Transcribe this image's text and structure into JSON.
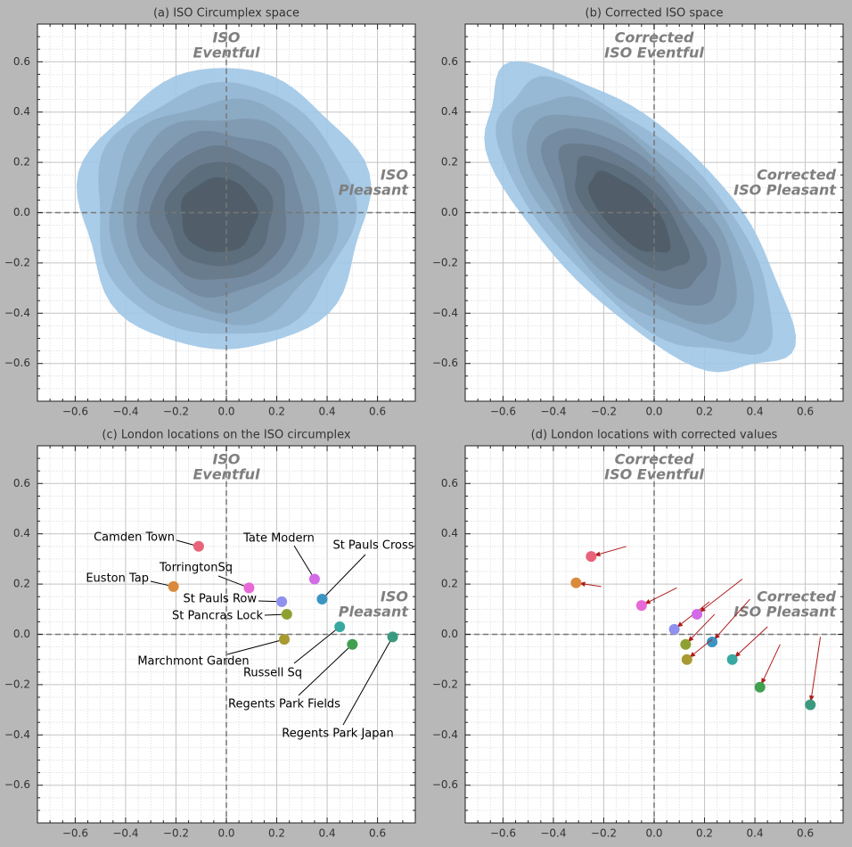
{
  "chart_data": [
    {
      "type": "kde",
      "title": "(a) ISO Circumplex space",
      "xlim": [
        -0.75,
        0.75
      ],
      "ylim": [
        -0.75,
        0.75
      ],
      "xticks": [
        {
          "value": -0.6,
          "label": "−0.6"
        },
        {
          "value": -0.4,
          "label": "−0.4"
        },
        {
          "value": -0.2,
          "label": "−0.2"
        },
        {
          "value": 0,
          "label": "0.0"
        },
        {
          "value": 0.2,
          "label": "0.2"
        },
        {
          "value": 0.4,
          "label": "0.4"
        },
        {
          "value": 0.6,
          "label": "0.6"
        }
      ],
      "yticks": [
        {
          "value": -0.6,
          "label": "−0.6"
        },
        {
          "value": -0.4,
          "label": "−0.4"
        },
        {
          "value": -0.2,
          "label": "−0.2"
        },
        {
          "value": 0,
          "label": "0.0"
        },
        {
          "value": 0.2,
          "label": "0.2"
        },
        {
          "value": 0.4,
          "label": "0.4"
        },
        {
          "value": 0.6,
          "label": "0.6"
        }
      ],
      "grid": true,
      "minor_grid": true,
      "hline": 0,
      "vline": 0,
      "annotations": [
        [
          "ISO",
          "Eventful"
        ],
        [
          "ISO",
          "Pleasant"
        ]
      ]
    },
    {
      "type": "kde",
      "title": "(b) Corrected ISO space",
      "xlim": [
        -0.75,
        0.75
      ],
      "ylim": [
        -0.75,
        0.75
      ],
      "xticks": [
        {
          "value": -0.6,
          "label": "−0.6"
        },
        {
          "value": -0.4,
          "label": "−0.4"
        },
        {
          "value": -0.2,
          "label": "−0.2"
        },
        {
          "value": 0,
          "label": "0.0"
        },
        {
          "value": 0.2,
          "label": "0.2"
        },
        {
          "value": 0.4,
          "label": "0.4"
        },
        {
          "value": 0.6,
          "label": "0.6"
        }
      ],
      "yticks": [
        {
          "value": -0.6,
          "label": "−0.6"
        },
        {
          "value": -0.4,
          "label": "−0.4"
        },
        {
          "value": -0.2,
          "label": "−0.2"
        },
        {
          "value": 0,
          "label": "0.0"
        },
        {
          "value": 0.2,
          "label": "0.2"
        },
        {
          "value": 0.4,
          "label": "0.4"
        },
        {
          "value": 0.6,
          "label": "0.6"
        }
      ],
      "grid": true,
      "minor_grid": true,
      "hline": 0,
      "vline": 0,
      "annotations": [
        [
          "Corrected",
          "ISO Eventful"
        ],
        [
          "Corrected",
          "ISO Pleasant"
        ]
      ]
    },
    {
      "type": "scatter",
      "title": "(c) London locations on the ISO circumplex",
      "xlim": [
        -0.75,
        0.75
      ],
      "ylim": [
        -0.75,
        0.75
      ],
      "xticks": [
        {
          "value": -0.6,
          "label": "−0.6"
        },
        {
          "value": -0.4,
          "label": "−0.4"
        },
        {
          "value": -0.2,
          "label": "−0.2"
        },
        {
          "value": 0,
          "label": "0.0"
        },
        {
          "value": 0.2,
          "label": "0.2"
        },
        {
          "value": 0.4,
          "label": "0.4"
        },
        {
          "value": 0.6,
          "label": "0.6"
        }
      ],
      "yticks": [
        {
          "value": -0.6,
          "label": "−0.6"
        },
        {
          "value": -0.4,
          "label": "−0.4"
        },
        {
          "value": -0.2,
          "label": "−0.2"
        },
        {
          "value": 0,
          "label": "0.0"
        },
        {
          "value": 0.2,
          "label": "0.2"
        },
        {
          "value": 0.4,
          "label": "0.4"
        },
        {
          "value": 0.6,
          "label": "0.6"
        }
      ],
      "grid": true,
      "minor_grid": true,
      "hline": 0,
      "vline": 0,
      "annotations": [
        [
          "ISO",
          "Eventful"
        ],
        [
          "ISO",
          "Pleasant"
        ]
      ],
      "series": [
        {
          "name": "Camden Town",
          "color": "#e8637a",
          "x": [
            -0.11
          ],
          "values": [
            0.35
          ]
        },
        {
          "name": "Euston Tap",
          "color": "#d98a3a",
          "x": [
            -0.21
          ],
          "values": [
            0.19
          ]
        },
        {
          "name": "TorringtonSq",
          "color": "#e868d6",
          "x": [
            0.09
          ],
          "values": [
            0.185
          ]
        },
        {
          "name": "St Pauls Row",
          "color": "#9090ee",
          "x": [
            0.22
          ],
          "values": [
            0.13
          ]
        },
        {
          "name": "St Pancras Lock",
          "color": "#8fa030",
          "x": [
            0.24
          ],
          "values": [
            0.08
          ]
        },
        {
          "name": "Tate Modern",
          "color": "#d36ae8",
          "x": [
            0.35
          ],
          "values": [
            0.22
          ]
        },
        {
          "name": "St Pauls Cross",
          "color": "#3a95c2",
          "x": [
            0.38
          ],
          "values": [
            0.14
          ]
        },
        {
          "name": "Marchmont Garden",
          "color": "#a89a30",
          "x": [
            0.23
          ],
          "values": [
            -0.02
          ]
        },
        {
          "name": "Russell Sq",
          "color": "#38a8a0",
          "x": [
            0.45
          ],
          "values": [
            0.03
          ]
        },
        {
          "name": "Regents Park Fields",
          "color": "#40a050",
          "x": [
            0.5
          ],
          "values": [
            -0.04
          ]
        },
        {
          "name": "Regents Park Japan",
          "color": "#3a9a80",
          "x": [
            0.66
          ],
          "values": [
            -0.01
          ]
        }
      ]
    },
    {
      "type": "scatter",
      "title": "(d) London locations with corrected values",
      "xlim": [
        -0.75,
        0.75
      ],
      "ylim": [
        -0.75,
        0.75
      ],
      "xticks": [
        {
          "value": -0.6,
          "label": "−0.6"
        },
        {
          "value": -0.4,
          "label": "−0.4"
        },
        {
          "value": -0.2,
          "label": "−0.2"
        },
        {
          "value": 0,
          "label": "0.0"
        },
        {
          "value": 0.2,
          "label": "0.2"
        },
        {
          "value": 0.4,
          "label": "0.4"
        },
        {
          "value": 0.6,
          "label": "0.6"
        }
      ],
      "yticks": [
        {
          "value": -0.6,
          "label": "−0.6"
        },
        {
          "value": -0.4,
          "label": "−0.4"
        },
        {
          "value": -0.2,
          "label": "−0.2"
        },
        {
          "value": 0,
          "label": "0.0"
        },
        {
          "value": 0.2,
          "label": "0.2"
        },
        {
          "value": 0.4,
          "label": "0.4"
        },
        {
          "value": 0.6,
          "label": "0.6"
        }
      ],
      "grid": true,
      "minor_grid": true,
      "hline": 0,
      "vline": 0,
      "annotations": [
        [
          "Corrected",
          "ISO Eventful"
        ],
        [
          "Corrected",
          "ISO Pleasant"
        ]
      ],
      "arrow_color": "#b01c1c",
      "series": [
        {
          "color": "#e8637a",
          "x": [
            -0.25
          ],
          "values": [
            0.31
          ]
        },
        {
          "color": "#d98a3a",
          "x": [
            -0.31
          ],
          "values": [
            0.205
          ]
        },
        {
          "color": "#e868d6",
          "x": [
            -0.05
          ],
          "values": [
            0.115
          ]
        },
        {
          "color": "#9090ee",
          "x": [
            0.08
          ],
          "values": [
            0.02
          ]
        },
        {
          "color": "#8fa030",
          "x": [
            0.125
          ],
          "values": [
            -0.04
          ]
        },
        {
          "color": "#d36ae8",
          "x": [
            0.17
          ],
          "values": [
            0.08
          ]
        },
        {
          "color": "#3a95c2",
          "x": [
            0.23
          ],
          "values": [
            -0.03
          ]
        },
        {
          "color": "#a89a30",
          "x": [
            0.13
          ],
          "values": [
            -0.1
          ]
        },
        {
          "color": "#38a8a0",
          "x": [
            0.31
          ],
          "values": [
            -0.1
          ]
        },
        {
          "color": "#40a050",
          "x": [
            0.42
          ],
          "values": [
            -0.21
          ]
        },
        {
          "color": "#3a9a80",
          "x": [
            0.62
          ],
          "values": [
            -0.28
          ]
        }
      ]
    }
  ]
}
